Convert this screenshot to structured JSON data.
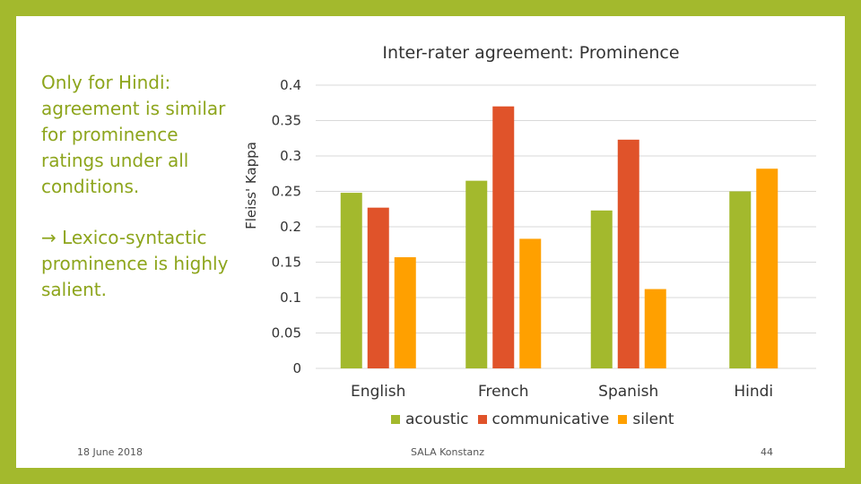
{
  "slide": {
    "bullet1": "Only for Hindi: agreement is similar for prominence ratings under all conditions.",
    "bullet2": "→ Lexico-syntactic prominence is highly salient.",
    "footer_date": "18 June 2018",
    "footer_center": "SALA Konstanz",
    "page_number": "44"
  },
  "colors": {
    "background": "#a3b92d",
    "acoustic": "#a3b92d",
    "communicative": "#e0532a",
    "silent": "#ffa000"
  },
  "chart_data": {
    "type": "bar",
    "title": "Inter-rater agreement: Prominence",
    "ylabel": "Fleiss' Kappa",
    "xlabel": "",
    "ylim": [
      0,
      0.4
    ],
    "yticks": [
      "0",
      "0.05",
      "0.1",
      "0.15",
      "0.2",
      "0.25",
      "0.3",
      "0.35",
      "0.4"
    ],
    "grid": true,
    "legend": "bottom",
    "categories": [
      "English",
      "French",
      "Spanish",
      "Hindi"
    ],
    "series": [
      {
        "name": "acoustic",
        "values": [
          0.248,
          0.265,
          0.223,
          0.25
        ]
      },
      {
        "name": "communicative",
        "values": [
          0.227,
          0.37,
          0.323,
          null
        ]
      },
      {
        "name": "silent",
        "values": [
          0.157,
          0.183,
          0.112,
          0.282
        ]
      }
    ]
  }
}
